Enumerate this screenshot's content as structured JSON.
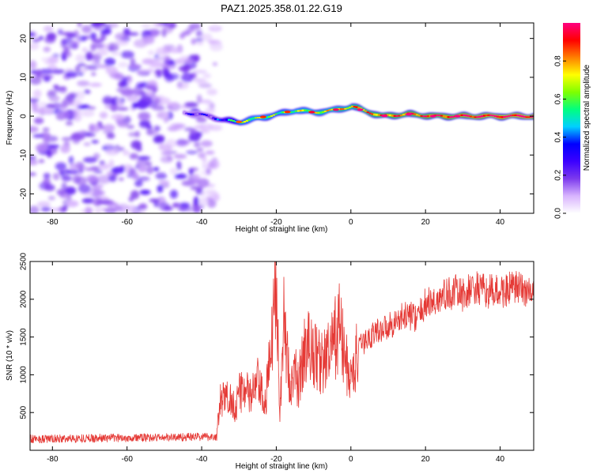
{
  "figure": {
    "title": "PAZ1.2025.358.01.22.G19"
  },
  "chart_data": [
    {
      "type": "heatmap",
      "title": "PAZ1.2025.358.01.22.G19",
      "xlabel": "Height of straight line (km)",
      "ylabel": "Frequency (Hz)",
      "xlim": [
        -86,
        49
      ],
      "ylim": [
        -25,
        24
      ],
      "xticks": [
        -80,
        -60,
        -40,
        -20,
        0,
        20,
        40
      ],
      "yticks": [
        -20,
        -10,
        0,
        10,
        20
      ],
      "colorbar": {
        "label": "Normalized spectral amplitude",
        "range": [
          0,
          1
        ],
        "ticks": [
          "0.0",
          "0.2",
          "0.4",
          "0.6",
          "0.8"
        ],
        "colors": [
          "#ffffff",
          "#d8b4fe",
          "#7c3aed",
          "#3b00ff",
          "#0000ff",
          "#00d0ff",
          "#00ff80",
          "#7fff00",
          "#ffff00",
          "#ff8000",
          "#ff0000",
          "#ff0080"
        ]
      },
      "noise_region": {
        "x_range": [
          -86,
          -36
        ],
        "freq_range": [
          -25,
          24
        ],
        "amplitude_range": [
          0.05,
          0.25
        ]
      },
      "ridge": [
        {
          "x": -45,
          "freq": 1.0,
          "amp": 0.22
        },
        {
          "x": -42,
          "freq": 0.5,
          "amp": 0.25
        },
        {
          "x": -38,
          "freq": 0.0,
          "amp": 0.25
        },
        {
          "x": -35,
          "freq": -1.0,
          "amp": 0.35
        },
        {
          "x": -30,
          "freq": -1.5,
          "amp": 0.6
        },
        {
          "x": -25,
          "freq": -0.5,
          "amp": 0.65
        },
        {
          "x": -20,
          "freq": 0.5,
          "amp": 0.6
        },
        {
          "x": -15,
          "freq": 1.5,
          "amp": 0.65
        },
        {
          "x": -10,
          "freq": 1.0,
          "amp": 0.7
        },
        {
          "x": -5,
          "freq": 1.5,
          "amp": 0.72
        },
        {
          "x": 0,
          "freq": 2.5,
          "amp": 0.78
        },
        {
          "x": 3,
          "freq": 1.5,
          "amp": 0.82
        },
        {
          "x": 8,
          "freq": 0.0,
          "amp": 0.85
        },
        {
          "x": 15,
          "freq": 0.5,
          "amp": 0.88
        },
        {
          "x": 22,
          "freq": 0.0,
          "amp": 0.9
        },
        {
          "x": 30,
          "freq": 0.0,
          "amp": 0.95
        },
        {
          "x": 40,
          "freq": 0.0,
          "amp": 1.0
        },
        {
          "x": 49,
          "freq": 0.0,
          "amp": 1.0
        }
      ]
    },
    {
      "type": "line",
      "xlabel": "Height of straight line (km)",
      "ylabel": "SNR (10 * v/v)",
      "xlim": [
        -86,
        49
      ],
      "ylim": [
        0,
        2500
      ],
      "xticks": [
        -80,
        -60,
        -40,
        -20,
        0,
        20,
        40
      ],
      "yticks": [
        500,
        1000,
        1500,
        2000,
        2500
      ],
      "series": [
        {
          "name": "SNR",
          "color": "#e53935",
          "x": [
            -86,
            -80,
            -70,
            -60,
            -50,
            -40,
            -36,
            -35,
            -33,
            -31,
            -29,
            -27,
            -25,
            -23,
            -21,
            -20,
            -19,
            -18,
            -17,
            -16,
            -15,
            -14,
            -12,
            -10,
            -8,
            -6,
            -4,
            -3,
            -2,
            0,
            2,
            4,
            6,
            8,
            10,
            12,
            15,
            18,
            20,
            22,
            25,
            28,
            30,
            33,
            36,
            40,
            44,
            48,
            49
          ],
          "values": [
            150,
            150,
            160,
            165,
            170,
            180,
            180,
            650,
            700,
            600,
            850,
            700,
            900,
            600,
            1500,
            2500,
            500,
            1700,
            1200,
            800,
            1000,
            900,
            1400,
            1300,
            1150,
            1250,
            1500,
            1700,
            1300,
            900,
            1350,
            1450,
            1550,
            1600,
            1650,
            1700,
            1800,
            1750,
            1950,
            1950,
            2050,
            2100,
            2050,
            2150,
            2100,
            2100,
            2150,
            2100,
            2050
          ]
        }
      ]
    }
  ]
}
